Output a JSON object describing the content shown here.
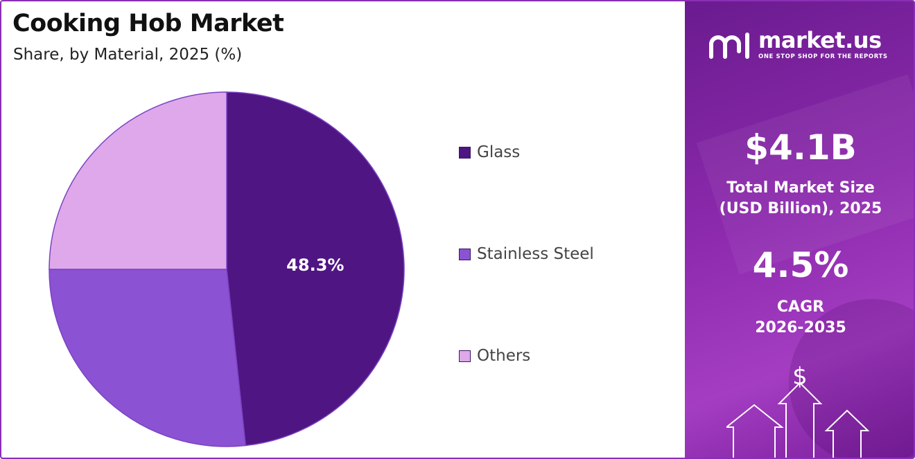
{
  "header": {
    "title": "Cooking Hob Market",
    "subtitle": "Share, by Material, 2025 (%)"
  },
  "chart_data": {
    "type": "pie",
    "categories": [
      "Glass",
      "Stainless Steel",
      "Others"
    ],
    "values": [
      48.3,
      26.7,
      25.0
    ],
    "colors": [
      "#4f1583",
      "#8b52d3",
      "#dfa8ea"
    ],
    "data_labels": [
      "48.3%",
      "",
      ""
    ],
    "legend_position": "right",
    "start_angle_deg": 0,
    "direction": "clockwise"
  },
  "panel": {
    "logo_name": "market.us",
    "logo_tagline": "ONE STOP SHOP FOR THE REPORTS",
    "market_size_value": "$4.1B",
    "market_size_label_line1": "Total Market Size",
    "market_size_label_line2": "(USD Billion), 2025",
    "cagr_value": "4.5%",
    "cagr_label_line1": "CAGR",
    "cagr_label_line2": "2026-2035",
    "art_icon": "dollar-arrows-icon",
    "art_symbol": "$"
  }
}
